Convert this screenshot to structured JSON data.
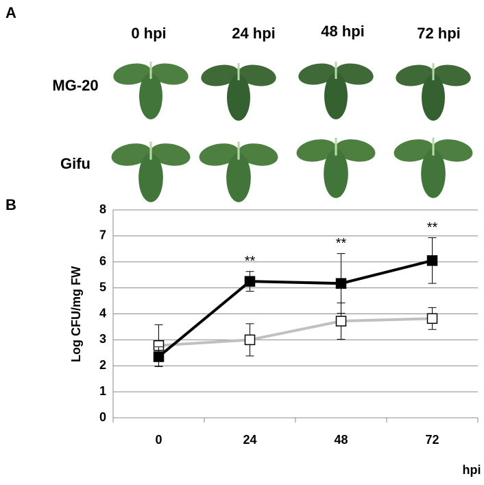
{
  "figure": {
    "panel_a_label": "A",
    "panel_b_label": "B",
    "columns": [
      "0 hpi",
      "24 hpi",
      "48 hpi",
      "72 hpi"
    ],
    "rows": [
      "MG-20",
      "Gifu"
    ]
  },
  "chart_data": {
    "type": "line",
    "categories": [
      "0",
      "24",
      "48",
      "72"
    ],
    "series": [
      {
        "color": "#000000",
        "marker_fill": "#000000",
        "values": [
          2.35,
          5.25,
          5.17,
          6.05
        ],
        "errors": [
          0.38,
          0.38,
          1.15,
          0.88
        ]
      },
      {
        "color": "#c0c0c0",
        "marker_fill": "#ffffff",
        "values": [
          2.78,
          3.0,
          3.72,
          3.82
        ],
        "errors": [
          0.8,
          0.62,
          0.7,
          0.42
        ]
      }
    ],
    "annotations": [
      {
        "text": "**",
        "category": "24"
      },
      {
        "text": "**",
        "category": "48"
      },
      {
        "text": "**",
        "category": "72"
      }
    ],
    "xlabel": "hpi",
    "ylabel": "Log CFU/mg FW",
    "ylim": [
      0,
      8
    ],
    "yticks": [
      0,
      1,
      2,
      3,
      4,
      5,
      6,
      7,
      8
    ],
    "grid": true
  }
}
